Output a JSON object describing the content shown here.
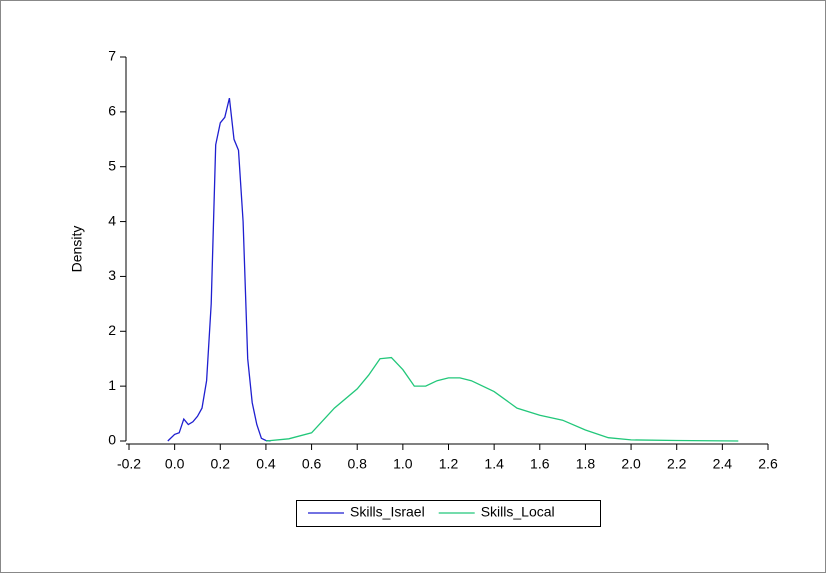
{
  "chart_data": {
    "type": "line",
    "ylabel": "Density",
    "xlim": [
      -0.2,
      2.6
    ],
    "ylim": [
      0,
      7
    ],
    "xticks": [
      -0.2,
      {
        "value": 0,
        "label": "0.0"
      },
      0.2,
      0.4,
      0.6,
      0.8,
      {
        "value": 1,
        "label": "1.0"
      },
      1.2,
      1.4,
      1.6,
      1.8,
      {
        "value": 2,
        "label": "2.0"
      },
      2.2,
      2.4,
      2.6
    ],
    "yticks": [
      0,
      1,
      2,
      3,
      4,
      5,
      6,
      7
    ],
    "legend": "bottom",
    "series": [
      {
        "name": "Skills_Israel",
        "color": "#1f1fd0",
        "x": [
          -0.03,
          0.0,
          0.02,
          0.04,
          0.06,
          0.08,
          0.1,
          0.12,
          0.14,
          0.16,
          0.18,
          0.2,
          0.22,
          0.24,
          0.26,
          0.28,
          0.3,
          0.32,
          0.34,
          0.36,
          0.38,
          0.4,
          0.42
        ],
        "values": [
          0,
          0.12,
          0.15,
          0.4,
          0.3,
          0.35,
          0.45,
          0.6,
          1.1,
          2.5,
          5.4,
          5.8,
          5.9,
          6.25,
          5.5,
          5.3,
          4.0,
          1.5,
          0.7,
          0.3,
          0.05,
          0.01,
          0
        ]
      },
      {
        "name": "Skills_Local",
        "color": "#22c77a",
        "x": [
          0.4,
          0.5,
          0.6,
          0.7,
          0.8,
          0.85,
          0.9,
          0.95,
          1.0,
          1.05,
          1.1,
          1.15,
          1.2,
          1.25,
          1.3,
          1.4,
          1.5,
          1.6,
          1.7,
          1.8,
          1.9,
          2.0,
          2.2,
          2.47
        ],
        "values": [
          0,
          0.04,
          0.15,
          0.6,
          0.95,
          1.2,
          1.5,
          1.52,
          1.3,
          1.0,
          1.0,
          1.1,
          1.15,
          1.15,
          1.1,
          0.9,
          0.6,
          0.47,
          0.38,
          0.2,
          0.06,
          0.02,
          0.01,
          0
        ]
      }
    ]
  }
}
